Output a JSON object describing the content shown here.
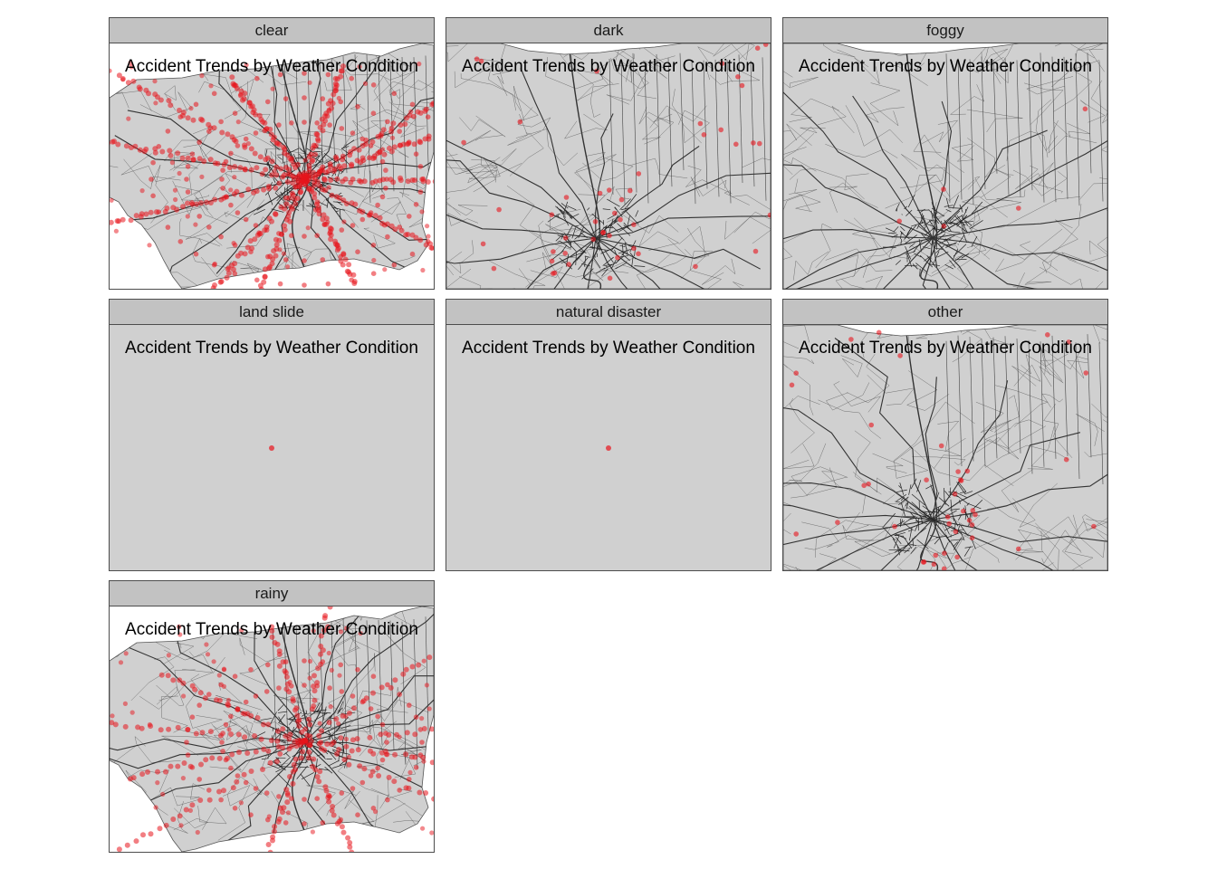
{
  "figure": {
    "map_title": "Accident Trends by Weather Condition",
    "accent_color": "#e8141c",
    "land_color": "#d0d0d0",
    "road_color": "#333333"
  },
  "panels": [
    {
      "label": "clear",
      "layout": "zoomed",
      "density": "very-high",
      "seed": 11,
      "points": 520
    },
    {
      "label": "dark",
      "layout": "full",
      "density": "low",
      "seed": 23,
      "points": 48
    },
    {
      "label": "foggy",
      "layout": "full",
      "density": "very-low",
      "seed": 37,
      "points": 5
    },
    {
      "label": "land slide",
      "layout": "single-point",
      "density": "single",
      "seed": 41,
      "points": 1
    },
    {
      "label": "natural disaster",
      "layout": "single-point",
      "density": "single",
      "seed": 53,
      "points": 1
    },
    {
      "label": "other",
      "layout": "full",
      "density": "low",
      "seed": 67,
      "points": 40
    },
    {
      "label": "rainy",
      "layout": "zoomed",
      "density": "high",
      "seed": 79,
      "points": 320
    }
  ]
}
